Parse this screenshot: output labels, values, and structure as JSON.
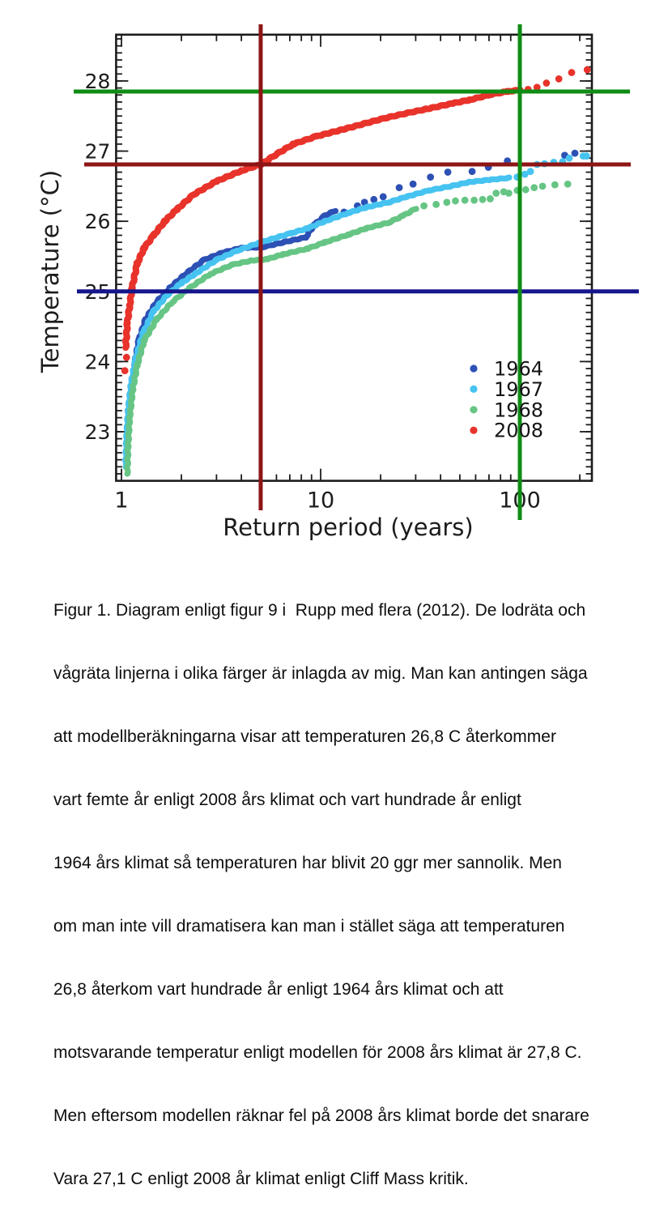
{
  "figure": {
    "caption_lines": [
      "Figur 1. Diagram enligt figur 9 i  Rupp med flera (2012). De lodräta och",
      "vågräta linjerna i olika färger är inlagda av mig. Man kan antingen säga",
      "att modellberäkningarna visar att temperaturen 26,8 C återkommer",
      "vart femte år enligt 2008 års klimat och vart hundrade år enligt",
      "1964 års klimat så temperaturen har blivit 20 ggr mer sannolik. Men",
      "om man inte vill dramatisera kan man i stället säga att temperaturen",
      "26,8 återkom vart hundrade år enligt 1964 års klimat och att",
      "motsvarande temperatur enligt modellen för 2008 års klimat är 27,8 C.",
      "Men eftersom modellen räknar fel på 2008 års klimat borde det snarare",
      "Vara 27,1 C enligt 2008 år klimat enligt Cliff Mass kritik."
    ]
  },
  "chart_data": {
    "type": "scatter",
    "title": "",
    "xlabel": "Return period (years)",
    "ylabel": "Temperature (°C)",
    "x_scale": "log",
    "xlim": [
      0.94,
      230
    ],
    "ylim": [
      22.3,
      28.66
    ],
    "x_ticks": [
      1,
      10,
      100
    ],
    "x_minor_ticks": [
      2,
      3,
      4,
      5,
      6,
      7,
      8,
      9,
      20,
      30,
      40,
      50,
      60,
      70,
      80,
      90,
      200
    ],
    "y_ticks": [
      23,
      24,
      25,
      26,
      27,
      28
    ],
    "y_minor_step": 0.1,
    "grid": false,
    "legend_position": "lower-right",
    "axis_color": "#1c1c1c",
    "series": [
      {
        "name": "1964",
        "color": "#2d50b4",
        "band": [
          [
            1.16,
            23.95
          ],
          [
            1.22,
            24.3
          ],
          [
            1.32,
            24.6
          ],
          [
            1.5,
            24.85
          ],
          [
            1.75,
            25.05
          ],
          [
            2.1,
            25.25
          ],
          [
            2.6,
            25.45
          ],
          [
            3.2,
            25.55
          ],
          [
            4.0,
            25.62
          ],
          [
            5.1,
            25.63
          ],
          [
            6.5,
            25.7
          ],
          [
            8.4,
            25.77
          ],
          [
            9.3,
            25.95
          ],
          [
            10.5,
            26.08
          ],
          [
            11.8,
            26.15
          ]
        ],
        "points": [
          [
            13.1,
            26.13
          ],
          [
            15.3,
            26.22
          ],
          [
            16.6,
            26.27
          ],
          [
            18.5,
            26.31
          ],
          [
            20.6,
            26.35
          ],
          [
            24.8,
            26.48
          ],
          [
            29.1,
            26.53
          ],
          [
            35.6,
            26.63
          ],
          [
            43.5,
            26.7
          ],
          [
            57.6,
            26.71
          ],
          [
            69.5,
            26.77
          ],
          [
            86.6,
            26.86
          ],
          [
            168,
            26.94
          ],
          [
            189,
            26.97
          ]
        ]
      },
      {
        "name": "1967",
        "color": "#46c3f0",
        "band": [
          [
            1.05,
            22.5
          ],
          [
            1.06,
            22.9
          ],
          [
            1.08,
            23.3
          ],
          [
            1.12,
            23.7
          ],
          [
            1.18,
            24.05
          ],
          [
            1.28,
            24.4
          ],
          [
            1.45,
            24.72
          ],
          [
            1.7,
            24.95
          ],
          [
            2.0,
            25.12
          ],
          [
            2.4,
            25.27
          ],
          [
            3.0,
            25.45
          ],
          [
            3.8,
            25.58
          ],
          [
            5.0,
            25.7
          ],
          [
            7.1,
            25.83
          ],
          [
            8.6,
            25.9
          ],
          [
            10.5,
            26.0
          ],
          [
            13.8,
            26.12
          ],
          [
            17,
            26.2
          ],
          [
            21.9,
            26.27
          ],
          [
            27,
            26.35
          ],
          [
            35,
            26.44
          ],
          [
            45,
            26.5
          ],
          [
            56,
            26.56
          ],
          [
            70,
            26.59
          ],
          [
            89,
            26.62
          ]
        ],
        "points": [
          [
            97,
            26.63
          ],
          [
            106,
            26.67
          ],
          [
            113,
            26.71
          ],
          [
            122,
            26.81
          ],
          [
            133,
            26.82
          ],
          [
            148,
            26.84
          ],
          [
            164,
            26.85
          ],
          [
            177,
            26.9
          ],
          [
            208,
            26.93
          ],
          [
            216,
            26.93
          ]
        ]
      },
      {
        "name": "1968",
        "color": "#66c584",
        "band": [
          [
            1.07,
            22.4
          ],
          [
            1.08,
            22.8
          ],
          [
            1.1,
            23.2
          ],
          [
            1.14,
            23.6
          ],
          [
            1.2,
            23.95
          ],
          [
            1.3,
            24.3
          ],
          [
            1.5,
            24.6
          ],
          [
            1.8,
            24.85
          ],
          [
            2.2,
            25.05
          ],
          [
            2.8,
            25.25
          ],
          [
            3.6,
            25.38
          ],
          [
            4.5,
            25.44
          ],
          [
            5.4,
            25.46
          ],
          [
            6.5,
            25.53
          ],
          [
            8.6,
            25.61
          ],
          [
            10.5,
            25.7
          ],
          [
            13.8,
            25.81
          ],
          [
            17,
            25.9
          ],
          [
            21.9,
            25.98
          ],
          [
            26,
            26.08
          ],
          [
            30,
            26.18
          ]
        ],
        "points": [
          [
            33,
            26.22
          ],
          [
            38,
            26.24
          ],
          [
            43,
            26.27
          ],
          [
            47.5,
            26.29
          ],
          [
            53,
            26.3
          ],
          [
            59,
            26.3
          ],
          [
            65,
            26.31
          ],
          [
            71,
            26.32
          ],
          [
            76,
            26.4
          ],
          [
            83,
            26.42
          ],
          [
            88,
            26.4
          ],
          [
            97,
            26.44
          ],
          [
            107,
            26.45
          ],
          [
            118,
            26.48
          ],
          [
            130,
            26.5
          ],
          [
            150,
            26.52
          ],
          [
            174,
            26.53
          ]
        ]
      },
      {
        "name": "2008",
        "color": "#e8332b",
        "band": [
          [
            1.05,
            24.2
          ],
          [
            1.07,
            24.55
          ],
          [
            1.1,
            24.8
          ],
          [
            1.13,
            25.05
          ],
          [
            1.2,
            25.4
          ],
          [
            1.3,
            25.62
          ],
          [
            1.45,
            25.8
          ],
          [
            1.65,
            26.0
          ],
          [
            1.9,
            26.17
          ],
          [
            2.3,
            26.38
          ],
          [
            3.0,
            26.57
          ],
          [
            4.0,
            26.72
          ],
          [
            5.0,
            26.81
          ],
          [
            6.2,
            26.98
          ],
          [
            7.3,
            27.1
          ],
          [
            9.5,
            27.21
          ],
          [
            13,
            27.31
          ],
          [
            16.5,
            27.39
          ],
          [
            21,
            27.47
          ],
          [
            27,
            27.54
          ],
          [
            34,
            27.6
          ],
          [
            46,
            27.68
          ],
          [
            56,
            27.73
          ],
          [
            72,
            27.81
          ],
          [
            87,
            27.85
          ],
          [
            100,
            27.87
          ]
        ],
        "points": [
          [
            1.04,
            23.87
          ],
          [
            1.06,
            24.06
          ],
          [
            110,
            27.88
          ],
          [
            122,
            27.91
          ],
          [
            136,
            27.97
          ],
          [
            157,
            28.03
          ],
          [
            182,
            28.12
          ],
          [
            218,
            28.16
          ]
        ]
      }
    ],
    "reference_lines": {
      "horizontal": [
        {
          "value": 27.85,
          "color": "#0f8c14",
          "meaning": "27,8 C"
        },
        {
          "value": 26.81,
          "color": "#8e1515",
          "meaning": "26,8 C"
        },
        {
          "value": 25.0,
          "color": "#16168c",
          "meaning": "25 C"
        }
      ],
      "vertical": [
        {
          "value": 5,
          "color": "#8e1515",
          "meaning": "vart femte år"
        },
        {
          "value": 100,
          "color": "#0f8c14",
          "meaning": "vart hundrade år"
        }
      ]
    }
  }
}
